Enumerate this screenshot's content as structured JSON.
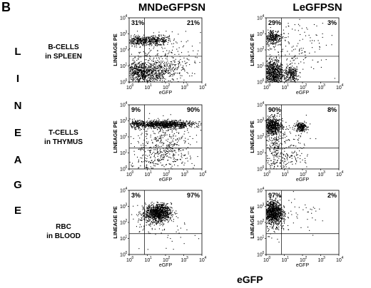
{
  "panel_letter": "B",
  "side_letters": [
    "L",
    "I",
    "N",
    "E",
    "A",
    "G",
    "E"
  ],
  "columns": [
    "MNDeGFPSN",
    "LeGFPSN"
  ],
  "rows": [
    {
      "line1": "B-CELLS",
      "line2": "in SPLEEN"
    },
    {
      "line1": "T-CELLS",
      "line2": "in THYMUS"
    },
    {
      "line1": "RBC",
      "line2": "in  BLOOD"
    }
  ],
  "x_axis_common": "eGFP",
  "chart_data": [
    {
      "type": "scatter",
      "column": "MNDeGFPSN",
      "row": "B-CELLS in SPLEEN",
      "xlabel": "eGFP",
      "ylabel": "LINEAGE PE",
      "xscale": "log",
      "yscale": "log",
      "xlim": [
        1,
        10000
      ],
      "ylim": [
        1,
        10000
      ],
      "x_ticks": [
        "10",
        "10",
        "10",
        "10",
        "10"
      ],
      "x_exps": [
        "0",
        "1",
        "2",
        "3",
        "4"
      ],
      "y_ticks": [
        "10",
        "10",
        "10",
        "10",
        "10"
      ],
      "y_exps": [
        "0",
        "1",
        "2",
        "3",
        "4"
      ],
      "quadrant_labels": {
        "upper_left": "31%",
        "upper_right": "21%"
      },
      "gates": {
        "x": 7,
        "y": 40
      }
    },
    {
      "type": "scatter",
      "column": "LeGFPSN",
      "row": "B-CELLS in SPLEEN",
      "xlabel": "eGFP",
      "ylabel": "LINEAGE PE",
      "xscale": "log",
      "yscale": "log",
      "xlim": [
        1,
        10000
      ],
      "ylim": [
        1,
        10000
      ],
      "x_ticks": [
        "10",
        "10",
        "10",
        "10",
        "10"
      ],
      "x_exps": [
        "0",
        "1",
        "2",
        "3",
        "4"
      ],
      "y_ticks": [
        "10",
        "10",
        "10",
        "10",
        "10"
      ],
      "y_exps": [
        "0",
        "1",
        "2",
        "3",
        "4"
      ],
      "quadrant_labels": {
        "upper_left": "29%",
        "upper_right": "3%"
      },
      "gates": {
        "x": 7,
        "y": 40
      }
    },
    {
      "type": "scatter",
      "column": "MNDeGFPSN",
      "row": "T-CELLS in THYMUS",
      "xlabel": "eGFP",
      "ylabel": "LINEAGE PE",
      "xscale": "log",
      "yscale": "log",
      "xlim": [
        1,
        10000
      ],
      "ylim": [
        1,
        10000
      ],
      "x_ticks": [
        "10",
        "10",
        "10",
        "10",
        "10"
      ],
      "x_exps": [
        "0",
        "1",
        "2",
        "3",
        "4"
      ],
      "y_ticks": [
        "10",
        "10",
        "10",
        "10",
        "10"
      ],
      "y_exps": [
        "0",
        "1",
        "2",
        "3",
        "4"
      ],
      "quadrant_labels": {
        "upper_left": "9%",
        "upper_right": "90%"
      },
      "gates": {
        "x": 7,
        "y": 20
      }
    },
    {
      "type": "scatter",
      "column": "LeGFPSN",
      "row": "T-CELLS in THYMUS",
      "xlabel": "eGFP",
      "ylabel": "LINEAGE PE",
      "xscale": "log",
      "yscale": "log",
      "xlim": [
        1,
        10000
      ],
      "ylim": [
        1,
        10000
      ],
      "x_ticks": [
        "10",
        "10",
        "10",
        "10",
        "10"
      ],
      "x_exps": [
        "0",
        "1",
        "2",
        "3",
        "4"
      ],
      "y_ticks": [
        "10",
        "10",
        "10",
        "10",
        "10"
      ],
      "y_exps": [
        "0",
        "1",
        "2",
        "3",
        "4"
      ],
      "quadrant_labels": {
        "upper_left": "90%",
        "upper_right": "8%"
      },
      "gates": {
        "x": 7,
        "y": 20
      }
    },
    {
      "type": "scatter",
      "column": "MNDeGFPSN",
      "row": "RBC in BLOOD",
      "xlabel": "eGFP",
      "ylabel": "LINEAGE PE",
      "xscale": "log",
      "yscale": "log",
      "xlim": [
        1,
        10000
      ],
      "ylim": [
        1,
        10000
      ],
      "x_ticks": [
        "10",
        "10",
        "10",
        "10",
        "10"
      ],
      "x_exps": [
        "0",
        "1",
        "2",
        "3",
        "4"
      ],
      "y_ticks": [
        "10",
        "10",
        "10",
        "10",
        "10"
      ],
      "y_exps": [
        "0",
        "1",
        "2",
        "3",
        "4"
      ],
      "quadrant_labels": {
        "upper_left": "3%",
        "upper_right": "97%"
      },
      "gates": {
        "x": 7,
        "y": 20
      }
    },
    {
      "type": "scatter",
      "column": "LeGFPSN",
      "row": "RBC in BLOOD",
      "xlabel": "eGFP",
      "ylabel": "LINEAGE PE",
      "xscale": "log",
      "yscale": "log",
      "xlim": [
        1,
        10000
      ],
      "ylim": [
        1,
        10000
      ],
      "x_ticks": [
        "10",
        "10",
        "10",
        "10",
        "10"
      ],
      "x_exps": [
        "0",
        "1",
        "2",
        "3",
        "4"
      ],
      "y_ticks": [
        "10",
        "10",
        "10",
        "10",
        "10"
      ],
      "y_exps": [
        "0",
        "1",
        "2",
        "3",
        "4"
      ],
      "quadrant_labels": {
        "upper_left": "97%",
        "upper_right": "2%"
      },
      "gates": {
        "x": 7,
        "y": 20
      }
    }
  ]
}
